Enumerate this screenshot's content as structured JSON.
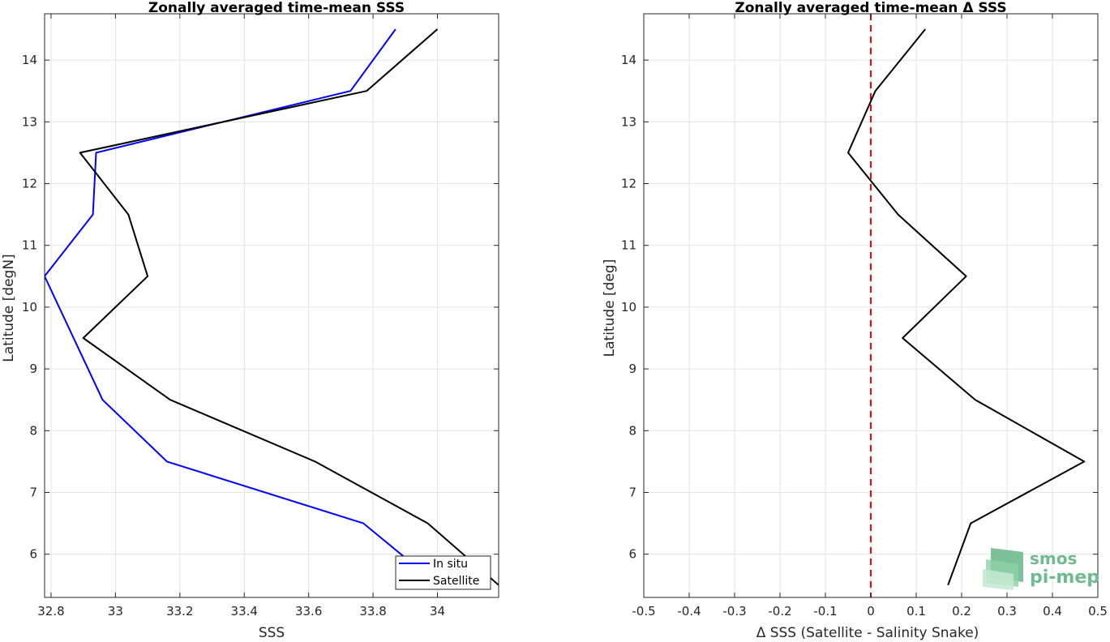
{
  "chart_data": [
    {
      "type": "line",
      "title": "Zonally averaged time-mean SSS",
      "xlabel": "SSS",
      "ylabel": "Latitude [degN]",
      "xlim": [
        32.78,
        34.19
      ],
      "ylim": [
        5.3,
        14.75
      ],
      "xticks": [
        32.8,
        33,
        33.2,
        33.4,
        33.6,
        33.8,
        34
      ],
      "xtick_labels": [
        "32.8",
        "33",
        "33.2",
        "33.4",
        "33.6",
        "33.8",
        "34"
      ],
      "yticks": [
        6,
        7,
        8,
        9,
        10,
        11,
        12,
        13,
        14
      ],
      "ytick_labels": [
        "6",
        "7",
        "8",
        "9",
        "10",
        "11",
        "12",
        "13",
        "14"
      ],
      "grid": true,
      "legend_position": "bottom-right",
      "series": [
        {
          "name": "In situ",
          "color": "#0000ff",
          "points": [
            [
              33.91,
              5.9
            ],
            [
              33.77,
              6.5
            ],
            [
              33.16,
              7.5
            ],
            [
              32.96,
              8.5
            ],
            [
              32.78,
              10.5
            ],
            [
              32.93,
              11.5
            ],
            [
              32.94,
              12.5
            ],
            [
              33.73,
              13.5
            ],
            [
              33.87,
              14.5
            ]
          ]
        },
        {
          "name": "Satellite",
          "color": "#000000",
          "points": [
            [
              34.19,
              5.5
            ],
            [
              33.97,
              6.5
            ],
            [
              33.62,
              7.5
            ],
            [
              33.17,
              8.5
            ],
            [
              32.9,
              9.5
            ],
            [
              33.1,
              10.5
            ],
            [
              33.04,
              11.5
            ],
            [
              32.89,
              12.5
            ],
            [
              33.78,
              13.5
            ],
            [
              34.0,
              14.5
            ]
          ]
        }
      ]
    },
    {
      "type": "line",
      "title": "Zonally averaged time-mean Δ SSS",
      "xlabel": "Δ SSS (Satellite - Salinity Snake)",
      "ylabel": "Latitude [deg]",
      "xlim": [
        -0.5,
        0.5
      ],
      "ylim": [
        5.3,
        14.75
      ],
      "xticks": [
        -0.5,
        -0.4,
        -0.3,
        -0.2,
        -0.1,
        0,
        0.1,
        0.2,
        0.3,
        0.4,
        0.5
      ],
      "xtick_labels": [
        "-0.5",
        "-0.4",
        "-0.3",
        "-0.2",
        "-0.1",
        "0",
        "0.1",
        "0.2",
        "0.3",
        "0.4",
        "0.5"
      ],
      "yticks": [
        6,
        7,
        8,
        9,
        10,
        11,
        12,
        13,
        14
      ],
      "ytick_labels": [
        "6",
        "7",
        "8",
        "9",
        "10",
        "11",
        "12",
        "13",
        "14"
      ],
      "grid": true,
      "reference_line": {
        "x": 0,
        "color": "#ff0000",
        "style": "dashed"
      },
      "series": [
        {
          "color": "#000000",
          "points": [
            [
              0.17,
              5.5
            ],
            [
              0.22,
              6.5
            ],
            [
              0.47,
              7.5
            ],
            [
              0.23,
              8.5
            ],
            [
              0.07,
              9.5
            ],
            [
              0.21,
              10.5
            ],
            [
              0.06,
              11.5
            ],
            [
              -0.05,
              12.5
            ],
            [
              0.01,
              13.5
            ],
            [
              0.12,
              14.5
            ]
          ]
        }
      ]
    }
  ],
  "logo": {
    "line1": "smos",
    "line2": "pi-mep",
    "color": "#6fba8f"
  }
}
